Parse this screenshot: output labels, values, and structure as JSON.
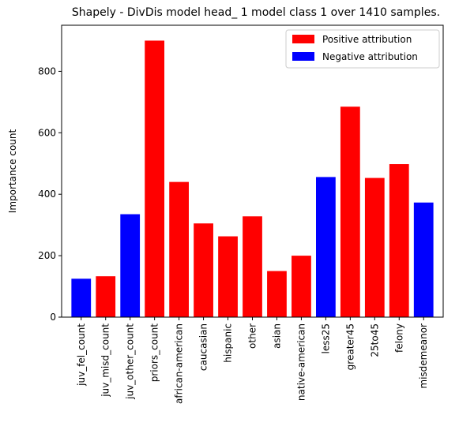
{
  "chart_data": {
    "type": "bar",
    "title": "Shapely - DivDis model head_ 1 model class 1 over 1410 samples.",
    "xlabel": "",
    "ylabel": "Importance count",
    "ylim": [
      0,
      950
    ],
    "yticks": [
      0,
      200,
      400,
      600,
      800
    ],
    "grid": false,
    "legend_position": "top-right",
    "legend": [
      {
        "label": "Positive attribution",
        "color": "#ff0000"
      },
      {
        "label": "Negative attribution",
        "color": "#0000ff"
      }
    ],
    "categories": [
      "juv_fel_count",
      "juv_misd_count",
      "juv_other_count",
      "priors_count",
      "african-american",
      "caucasian",
      "hispanic",
      "other",
      "asian",
      "native-american",
      "less25",
      "greater45",
      "25to45",
      "felony",
      "misdemeanor"
    ],
    "values": [
      125,
      133,
      335,
      900,
      440,
      305,
      263,
      328,
      150,
      200,
      456,
      685,
      453,
      498,
      373
    ],
    "bar_colors": [
      "#0000ff",
      "#ff0000",
      "#0000ff",
      "#ff0000",
      "#ff0000",
      "#ff0000",
      "#ff0000",
      "#ff0000",
      "#ff0000",
      "#ff0000",
      "#0000ff",
      "#ff0000",
      "#ff0000",
      "#ff0000",
      "#0000ff"
    ]
  }
}
